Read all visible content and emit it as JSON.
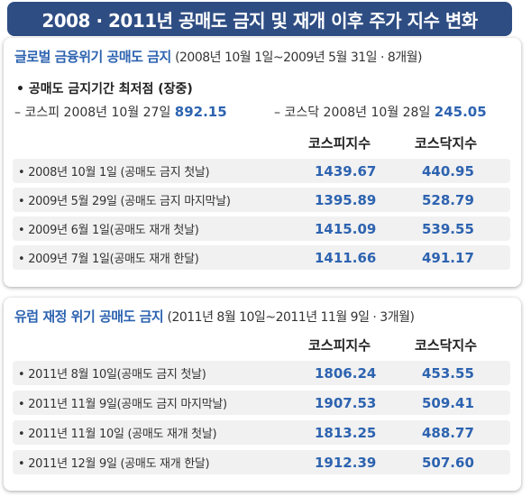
{
  "banner": {
    "title": "2008 · 2011년 공매도 금지 및 재개 이후 주가 지수 변화"
  },
  "section1": {
    "title": "글로벌 금융위기 공매도 금지",
    "subtitle": "(2008년 10월 1일~2009년 5월 31일 · 8개월)",
    "low_title": "• 공매도 금지기간 최저점 (장중)",
    "kospi_low_label": "– 코스피 2008년 10월 27일",
    "kospi_low_value": "892.15",
    "kosdaq_low_label": "– 코스닥 2008년 10월 28일",
    "kosdaq_low_value": "245.05",
    "col_kospi": "코스피지수",
    "col_kosdaq": "코스닥지수",
    "rows": [
      {
        "label": "• 2008년 10월 1일 (공매도 금지 첫날)",
        "kospi": "1439.67",
        "kosdaq": "440.95"
      },
      {
        "label": "• 2009년 5월 29일 (공매도 금지 마지막날)",
        "kospi": "1395.89",
        "kosdaq": "528.79"
      },
      {
        "label": "• 2009년 6월 1일(공매도 재개 첫날)",
        "kospi": "1415.09",
        "kosdaq": "539.55"
      },
      {
        "label": "• 2009년 7월 1일(공매도 재개 한달)",
        "kospi": "1411.66",
        "kosdaq": "491.17"
      }
    ]
  },
  "section2": {
    "title": "유럽 재정 위기 공매도 금지",
    "subtitle": "(2011년 8월 10일~2011년 11월 9일 · 3개월)",
    "col_kospi": "코스피지수",
    "col_kosdaq": "코스닥지수",
    "rows": [
      {
        "label": "• 2011년 8월 10일(공매도 금지 첫날)",
        "kospi": "1806.24",
        "kosdaq": "453.55"
      },
      {
        "label": "• 2011년 11월 9일(공매도 금지 마지막날)",
        "kospi": "1907.53",
        "kosdaq": "509.41"
      },
      {
        "label": "• 2011년 11월 10일 (공매도 재개 첫날)",
        "kospi": "1813.25",
        "kosdaq": "488.77"
      },
      {
        "label": "• 2011년 12월 9일 (공매도 재개 한달)",
        "kospi": "1912.39",
        "kosdaq": "507.60"
      }
    ]
  }
}
